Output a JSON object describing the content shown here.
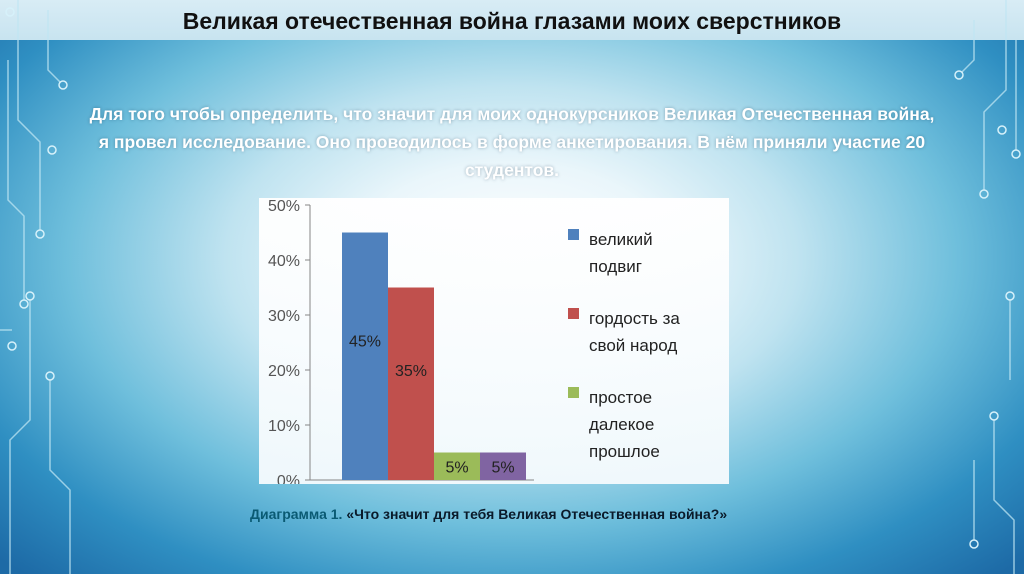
{
  "slide": {
    "title": "Великая отечественная война глазами моих сверстников",
    "intro": "Для того чтобы определить, что значит для моих однокурсников Великая Отечественная война, я провел исследование. Оно проводилось в форме анкетирования. В нём приняли участие 20 студентов.",
    "caption_label": "Диаграмма 1.",
    "caption_text": "«Что значит для тебя Великая Отечественная война?»"
  },
  "colors": {
    "accent": "#0a5a73",
    "background_edge": "#1d6aa6",
    "circuit": "#bfe6f3"
  },
  "chart_data": {
    "type": "bar",
    "title": "",
    "xlabel": "",
    "ylabel": "",
    "ylim": [
      0,
      0.5
    ],
    "yticks": [
      "0%",
      "10%",
      "20%",
      "30%",
      "40%",
      "50%"
    ],
    "grid": false,
    "legend_position": "right",
    "categories": [
      ""
    ],
    "series": [
      {
        "name": "великий подвиг",
        "values": [
          0.45
        ],
        "label": "45%",
        "color": "#4f81bd"
      },
      {
        "name": "гордость за свой народ",
        "values": [
          0.35
        ],
        "label": "35%",
        "color": "#c0504d"
      },
      {
        "name": "простое далекое прошлое",
        "values": [
          0.05
        ],
        "label": "5%",
        "color": "#9bbb59"
      },
      {
        "name": "",
        "values": [
          0.05
        ],
        "label": "5%",
        "color": "#8064a2"
      }
    ]
  }
}
